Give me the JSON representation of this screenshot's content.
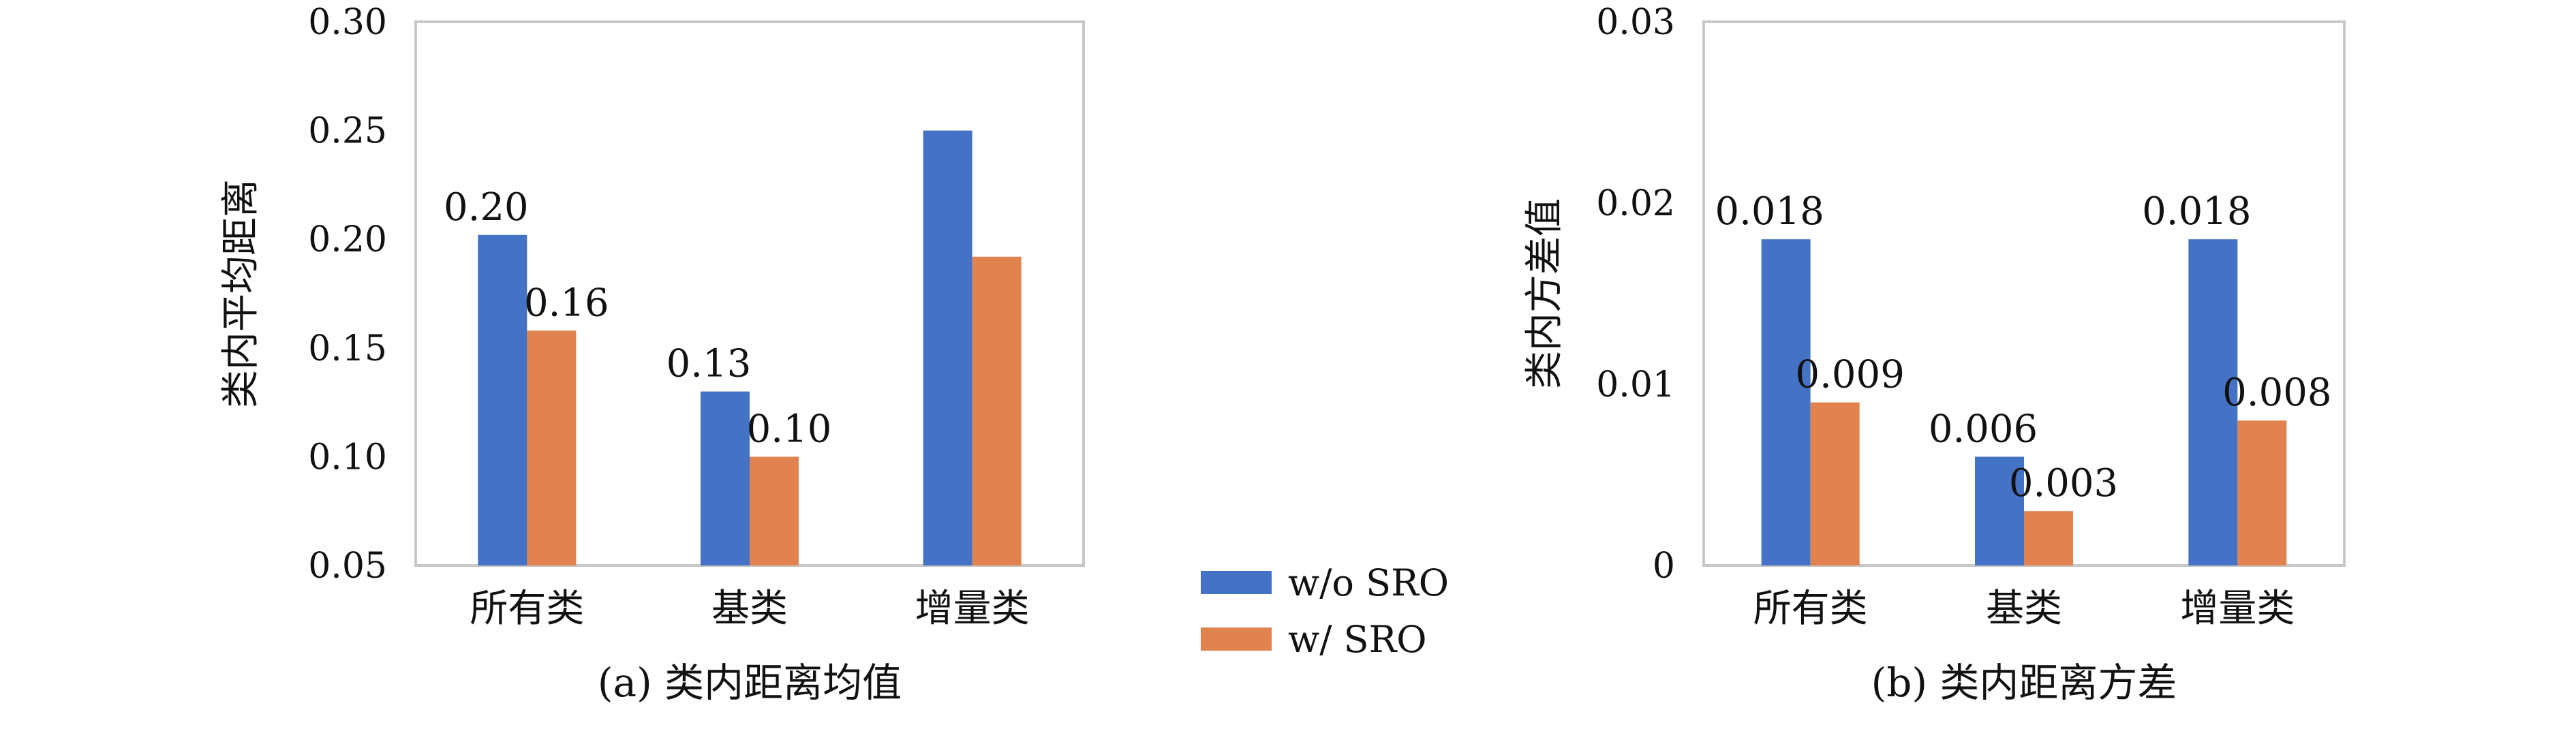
{
  "colors": {
    "series_wo": "#4472C4",
    "series_w": "#E0834F",
    "frame": "#c8c8c8"
  },
  "legend": {
    "items": [
      "w/o SRO",
      "w/ SRO"
    ]
  },
  "chart_data": [
    {
      "type": "bar",
      "caption": "(a) 类内距离均值",
      "ylabel": "类内平均距离",
      "categories": [
        "所有类",
        "基类",
        "增量类"
      ],
      "ylim": [
        0.05,
        0.3
      ],
      "yticks": [
        "0.05",
        "0.10",
        "0.15",
        "0.20",
        "0.25",
        "0.30"
      ],
      "series": [
        {
          "name": "w/o SRO",
          "values": [
            0.202,
            0.13,
            0.25
          ],
          "labels": [
            "0.20",
            "0.13",
            ""
          ]
        },
        {
          "name": "w/ SRO",
          "values": [
            0.158,
            0.1,
            0.192
          ],
          "labels": [
            "0.16",
            "0.10",
            ""
          ]
        }
      ],
      "grid": false
    },
    {
      "type": "bar",
      "caption": "(b) 类内距离方差",
      "ylabel": "类内方差值",
      "categories": [
        "所有类",
        "基类",
        "增量类"
      ],
      "ylim": [
        0,
        0.03
      ],
      "yticks": [
        "0",
        "0.01",
        "0.02",
        "0.03"
      ],
      "series": [
        {
          "name": "w/o SRO",
          "values": [
            0.018,
            0.006,
            0.018
          ],
          "labels": [
            "0.018",
            "0.006",
            "0.018"
          ]
        },
        {
          "name": "w/ SRO",
          "values": [
            0.009,
            0.003,
            0.008
          ],
          "labels": [
            "0.009",
            "0.003",
            "0.008"
          ]
        }
      ],
      "grid": false
    }
  ]
}
